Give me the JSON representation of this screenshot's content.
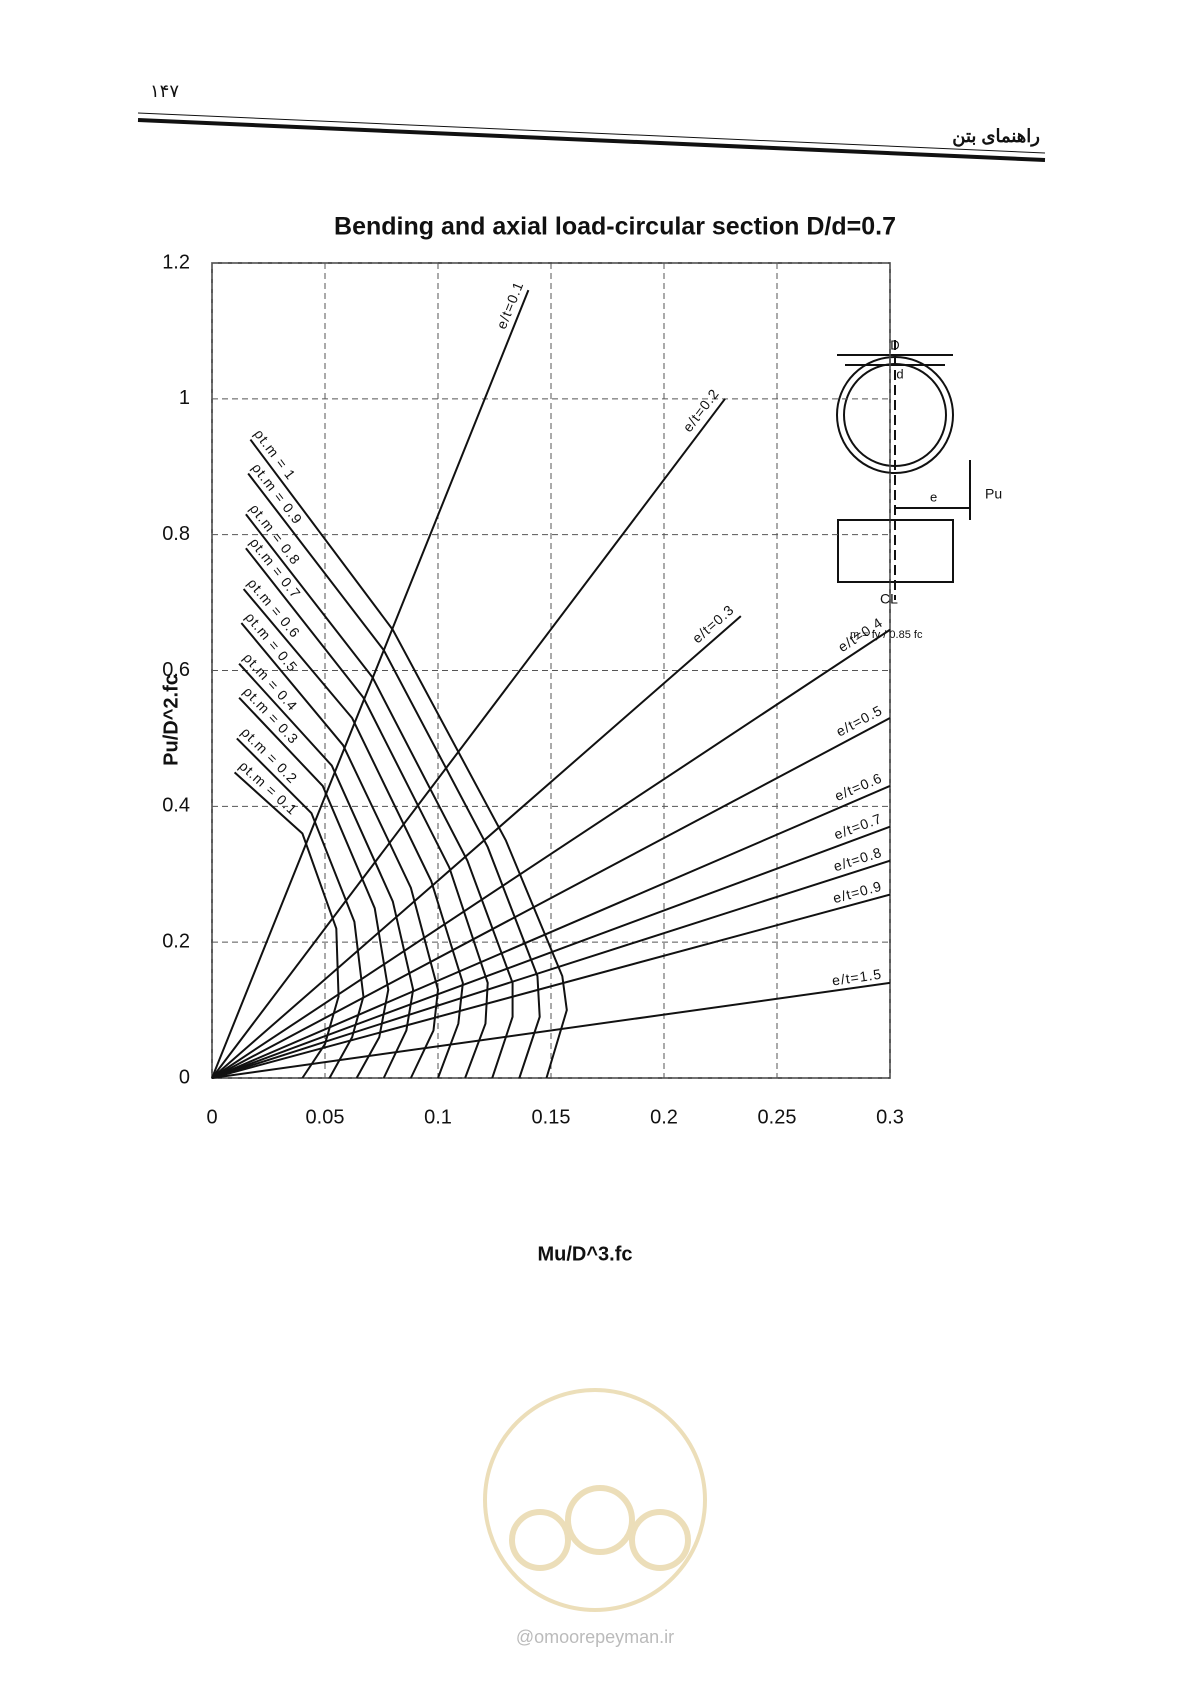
{
  "page_number": "۱۴۷",
  "header": "راهنمای بتن",
  "chart_data": {
    "type": "line",
    "title": "Bending and axial load-circular section  D/d=0.7",
    "x_label": "Mu/D^3.fc",
    "y_label": "Pu/D^2.fc",
    "xlim": [
      0,
      0.3
    ],
    "ylim": [
      0,
      1.2
    ],
    "xticks": [
      0,
      0.05,
      0.1,
      0.15,
      0.2,
      0.25,
      0.3
    ],
    "yticks": [
      0,
      0.2,
      0.4,
      0.6,
      0.8,
      1,
      1.2
    ],
    "grid": true,
    "line_color": "#111111",
    "series": [
      {
        "name": "e/t=0.1",
        "x": [
          0,
          0.14
        ],
        "values": [
          0,
          1.16
        ]
      },
      {
        "name": "e/t=0.2",
        "x": [
          0,
          0.227
        ],
        "values": [
          0,
          1.0
        ]
      },
      {
        "name": "e/t=0.3",
        "x": [
          0,
          0.234
        ],
        "values": [
          0,
          0.68
        ]
      },
      {
        "name": "e/t=0.4",
        "x": [
          0,
          0.3
        ],
        "values": [
          0,
          0.66
        ]
      },
      {
        "name": "e/t=0.5",
        "x": [
          0,
          0.3
        ],
        "values": [
          0,
          0.53
        ]
      },
      {
        "name": "e/t=0.6",
        "x": [
          0,
          0.3
        ],
        "values": [
          0,
          0.43
        ]
      },
      {
        "name": "e/t=0.7",
        "x": [
          0,
          0.3
        ],
        "values": [
          0,
          0.37
        ]
      },
      {
        "name": "e/t=0.8",
        "x": [
          0,
          0.3
        ],
        "values": [
          0,
          0.32
        ]
      },
      {
        "name": "e/t=0.9",
        "x": [
          0,
          0.3
        ],
        "values": [
          0,
          0.27
        ]
      },
      {
        "name": "e/t=1.5",
        "x": [
          0,
          0.3
        ],
        "values": [
          0,
          0.14
        ]
      },
      {
        "name": "ρt.m = 1",
        "x": [
          0.017,
          0.08,
          0.13,
          0.155,
          0.157,
          0.148
        ],
        "values": [
          0.94,
          0.66,
          0.35,
          0.15,
          0.1,
          0
        ]
      },
      {
        "name": "ρt.m = 0.9",
        "x": [
          0.016,
          0.076,
          0.122,
          0.144,
          0.145,
          0.136
        ],
        "values": [
          0.89,
          0.63,
          0.34,
          0.15,
          0.09,
          0
        ]
      },
      {
        "name": "ρt.m = 0.8",
        "x": [
          0.015,
          0.071,
          0.113,
          0.133,
          0.133,
          0.124
        ],
        "values": [
          0.83,
          0.59,
          0.32,
          0.14,
          0.09,
          0
        ]
      },
      {
        "name": "ρt.m = 0.7",
        "x": [
          0.015,
          0.067,
          0.105,
          0.122,
          0.121,
          0.112
        ],
        "values": [
          0.78,
          0.56,
          0.31,
          0.14,
          0.08,
          0
        ]
      },
      {
        "name": "ρt.m = 0.6",
        "x": [
          0.014,
          0.062,
          0.097,
          0.111,
          0.109,
          0.1
        ],
        "values": [
          0.72,
          0.53,
          0.29,
          0.14,
          0.08,
          0
        ]
      },
      {
        "name": "ρt.m = 0.5",
        "x": [
          0.013,
          0.058,
          0.088,
          0.1,
          0.098,
          0.088
        ],
        "values": [
          0.67,
          0.49,
          0.28,
          0.13,
          0.07,
          0
        ]
      },
      {
        "name": "ρt.m = 0.4",
        "x": [
          0.012,
          0.053,
          0.08,
          0.089,
          0.086,
          0.076
        ],
        "values": [
          0.61,
          0.46,
          0.26,
          0.13,
          0.07,
          0
        ]
      },
      {
        "name": "ρt.m = 0.3",
        "x": [
          0.012,
          0.049,
          0.072,
          0.078,
          0.074,
          0.064
        ],
        "values": [
          0.56,
          0.43,
          0.25,
          0.13,
          0.06,
          0
        ]
      },
      {
        "name": "ρt.m = 0.2",
        "x": [
          0.011,
          0.044,
          0.063,
          0.067,
          0.062,
          0.052
        ],
        "values": [
          0.5,
          0.39,
          0.23,
          0.12,
          0.06,
          0
        ]
      },
      {
        "name": "ρt.m = 0.1",
        "x": [
          0.01,
          0.04,
          0.055,
          0.056,
          0.05,
          0.04
        ],
        "values": [
          0.45,
          0.36,
          0.22,
          0.12,
          0.05,
          0
        ]
      }
    ]
  },
  "inset": {
    "d_outer": "D",
    "d_inner": "d",
    "load": "Pu",
    "ecc": "e",
    "axis": "CL",
    "formula": "m = fy / 0.85 fc"
  },
  "watermark": "@omoorepeyman.ir"
}
